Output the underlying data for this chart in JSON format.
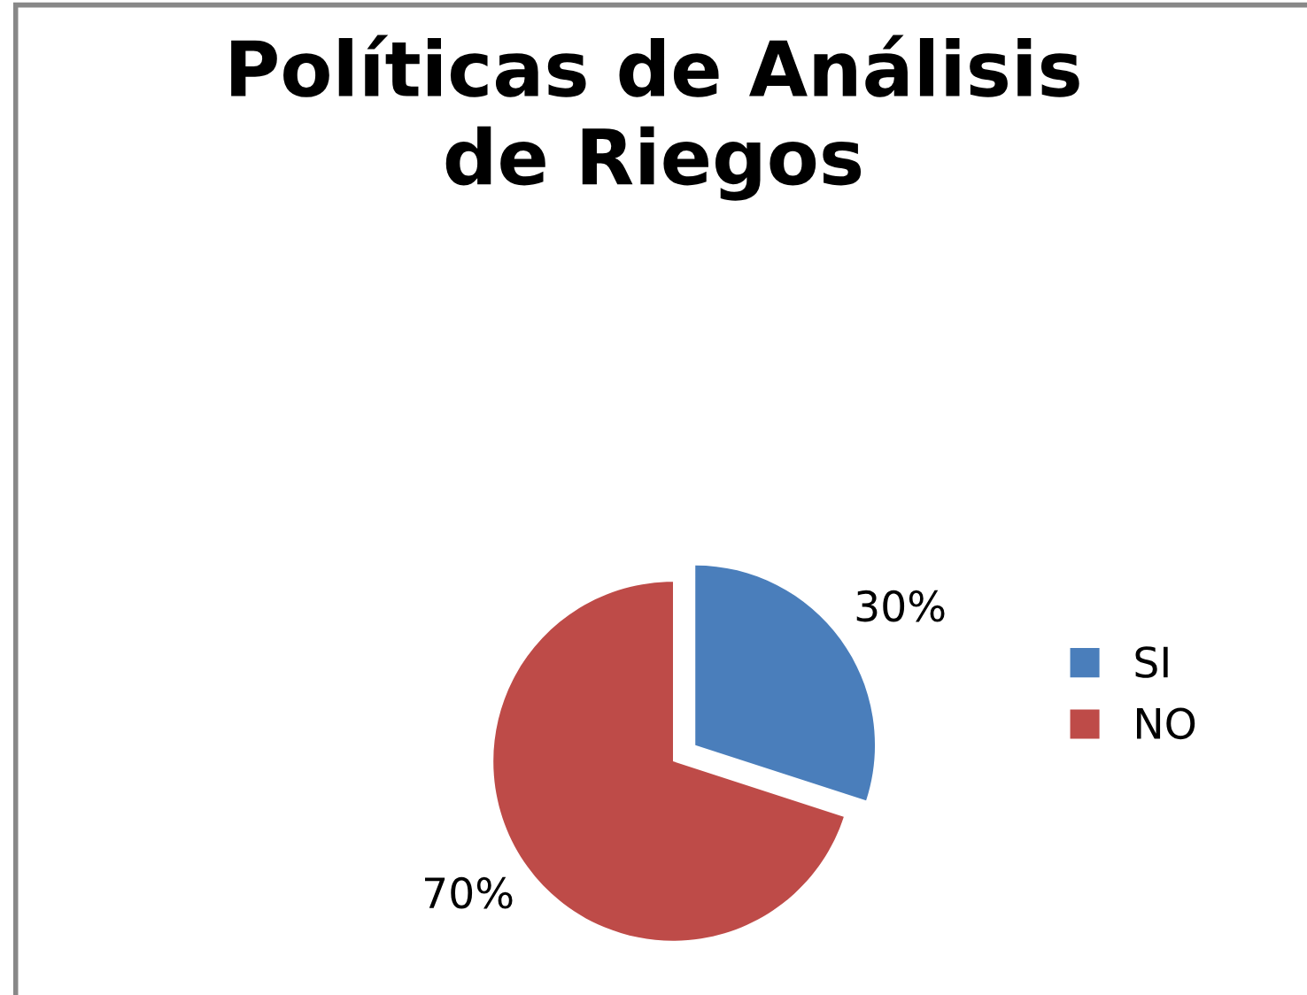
{
  "chart_data": {
    "type": "pie",
    "title": "Políticas de Análisis\nde Riegos",
    "categories": [
      "SI",
      "NO"
    ],
    "values": [
      30,
      70
    ],
    "colors": [
      "#4a7ebb",
      "#be4b48"
    ],
    "value_labels": [
      "30%",
      "70%"
    ],
    "legend": "right"
  }
}
